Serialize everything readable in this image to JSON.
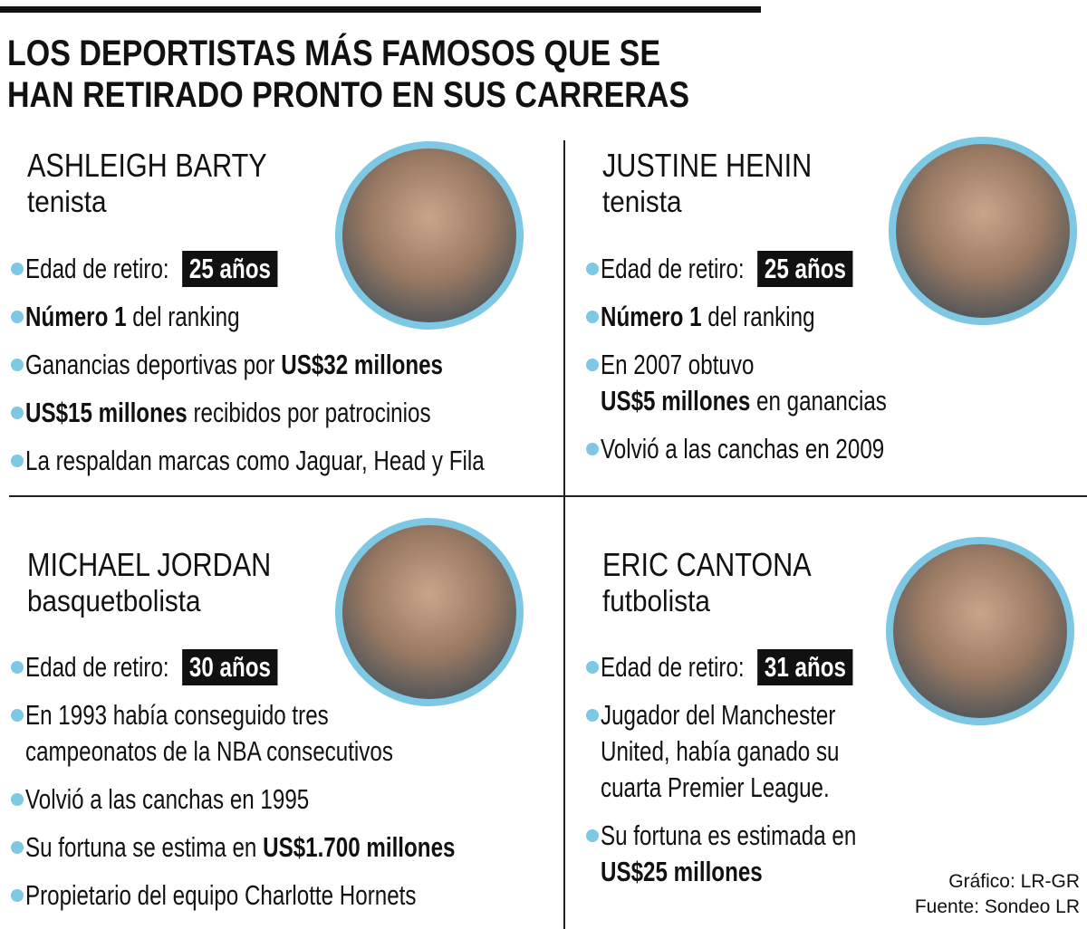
{
  "header": {
    "title_lines": [
      "LOS DEPORTISTAS MÁS FAMOSOS QUE SE",
      "HAN RETIRADO PRONTO EN SUS CARRERAS"
    ]
  },
  "panels": [
    {
      "name": "ASHLEIGH BARTY",
      "role": "tenista",
      "bullets": [
        {
          "lines": [
            [
              {
                "text": "Edad de retiro: "
              },
              {
                "text": "25 años",
                "badge": true
              }
            ]
          ]
        },
        {
          "lines": [
            [
              {
                "text": "Número 1",
                "bold": true
              },
              {
                "text": " del ranking"
              }
            ]
          ]
        },
        {
          "lines": [
            [
              {
                "text": "Ganancias deportivas por "
              },
              {
                "text": "US$32 millones",
                "bold": true
              }
            ]
          ]
        },
        {
          "lines": [
            [
              {
                "text": "US$15 millones",
                "bold": true
              },
              {
                "text": " recibidos por patrocinios"
              }
            ]
          ]
        },
        {
          "lines": [
            [
              {
                "text": "La respaldan marcas como Jaguar, Head y Fila"
              }
            ]
          ]
        }
      ]
    },
    {
      "name": "JUSTINE HENIN",
      "role": "tenista",
      "bullets": [
        {
          "lines": [
            [
              {
                "text": "Edad de retiro: "
              },
              {
                "text": "25 años",
                "badge": true
              }
            ]
          ]
        },
        {
          "lines": [
            [
              {
                "text": "Número 1",
                "bold": true
              },
              {
                "text": " del ranking"
              }
            ]
          ]
        },
        {
          "lines": [
            [
              {
                "text": "En 2007 obtuvo"
              }
            ],
            [
              {
                "text": "US$5 millones",
                "bold": true
              },
              {
                "text": " en ganancias"
              }
            ]
          ]
        },
        {
          "lines": [
            [
              {
                "text": "Volvió a las canchas en 2009"
              }
            ]
          ]
        }
      ]
    },
    {
      "name": "MICHAEL JORDAN",
      "role": "basquetbolista",
      "bullets": [
        {
          "lines": [
            [
              {
                "text": "Edad de retiro: "
              },
              {
                "text": "30 años",
                "badge": true
              }
            ]
          ]
        },
        {
          "lines": [
            [
              {
                "text": "En 1993 había conseguido tres"
              }
            ],
            [
              {
                "text": "campeonatos de la NBA consecutivos"
              }
            ]
          ]
        },
        {
          "lines": [
            [
              {
                "text": "Volvió a las canchas en 1995"
              }
            ]
          ]
        },
        {
          "lines": [
            [
              {
                "text": "Su fortuna se estima en "
              },
              {
                "text": "US$1.700 millones",
                "bold": true
              }
            ]
          ]
        },
        {
          "lines": [
            [
              {
                "text": "Propietario del equipo Charlotte Hornets"
              }
            ]
          ]
        }
      ]
    },
    {
      "name": "ERIC CANTONA",
      "role": "futbolista",
      "bullets": [
        {
          "lines": [
            [
              {
                "text": "Edad de retiro: "
              },
              {
                "text": "31 años",
                "badge": true
              }
            ]
          ]
        },
        {
          "lines": [
            [
              {
                "text": "Jugador del Manchester"
              }
            ],
            [
              {
                "text": "United, había ganado su"
              }
            ],
            [
              {
                "text": "cuarta Premier League."
              }
            ]
          ]
        },
        {
          "lines": [
            [
              {
                "text": "Su fortuna es estimada en"
              }
            ],
            [
              {
                "text": "US$25 millones",
                "bold": true
              }
            ]
          ]
        }
      ]
    }
  ],
  "footer": {
    "credit": "Gráfico: LR-GR",
    "source": "Fuente: Sondeo LR"
  }
}
